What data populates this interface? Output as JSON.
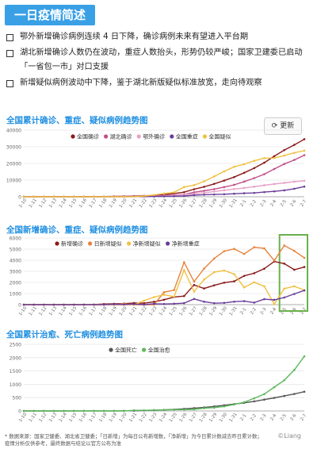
{
  "header": {
    "title": "一日疫情简述"
  },
  "bullets": [
    "鄂外新增确诊病例连续 4 日下降，确诊病例未来有望进入平台期",
    "湖北新增确诊人数仍在波动，重症人数抬头，形势仍较严峻；国家卫建委已启动「一省包一市」对口支援",
    "新增疑似病例波动中下降，鉴于湖北新版疑似标准放宽，走向待观察"
  ],
  "refresh_label": "更新",
  "footnote": "* 数据来源：国家卫健委、湖北省卫健委；「日新增」为每日公布新增数，「净新增」为今日累计数减去昨日累计数；\n疫情分析仅供参考，最终数据与结论以官方公布为准",
  "watermark": "©Liang",
  "colors": {
    "confirmed": "#8b1a1a",
    "hubei": "#c0508a",
    "outside": "#e8a0c8",
    "severe": "#6a3d9a",
    "suspected": "#f0c040",
    "new_suspected": "#e8823a",
    "death": "#555555",
    "cured": "#5cb85c",
    "highlight_box": "#6ab04c"
  },
  "chart_data": [
    {
      "type": "line",
      "title": "全国累计确诊、重症、疑似病例趋势图",
      "categories": [
        "1-10",
        "1-11",
        "1-12",
        "1-13",
        "1-14",
        "1-15",
        "1-16",
        "1-17",
        "1-18",
        "1-19",
        "1-20",
        "1-21",
        "1-22",
        "1-23",
        "1-24",
        "1-25",
        "1-26",
        "1-27",
        "1-28",
        "1-29",
        "1-30",
        "1-31",
        "2-1",
        "2-2",
        "2-3",
        "2-4",
        "2-5",
        "2-6",
        "2-7"
      ],
      "ylim": [
        0,
        40000
      ],
      "yticks": [
        "0",
        "10000",
        "20000",
        "30000",
        "40000"
      ],
      "series": [
        {
          "name": "全国确诊",
          "color_key": "confirmed",
          "values": [
            41,
            41,
            41,
            41,
            41,
            41,
            45,
            62,
            121,
            198,
            291,
            440,
            571,
            830,
            1287,
            1975,
            2744,
            4515,
            5974,
            7711,
            9692,
            11791,
            14380,
            17205,
            20438,
            24324,
            28018,
            31161,
            34546
          ]
        },
        {
          "name": "湖北确诊",
          "color_key": "hubei",
          "values": [
            41,
            41,
            41,
            41,
            41,
            41,
            45,
            62,
            121,
            198,
            270,
            375,
            444,
            549,
            729,
            1052,
            1423,
            2714,
            3554,
            4586,
            5806,
            7153,
            9074,
            11177,
            13522,
            16678,
            19665,
            22112,
            24953
          ]
        },
        {
          "name": "鄂外确诊",
          "color_key": "outside",
          "values": [
            0,
            0,
            0,
            0,
            0,
            0,
            0,
            0,
            0,
            0,
            21,
            65,
            127,
            281,
            558,
            923,
            1321,
            1801,
            2420,
            3125,
            3886,
            4638,
            5306,
            6028,
            6916,
            7646,
            8353,
            9049,
            9593
          ]
        },
        {
          "name": "全国重症",
          "color_key": "severe",
          "values": [
            0,
            0,
            0,
            0,
            0,
            0,
            0,
            0,
            0,
            35,
            51,
            102,
            95,
            177,
            237,
            324,
            461,
            976,
            1239,
            1370,
            1527,
            1795,
            2110,
            2296,
            2788,
            3219,
            3859,
            4821,
            6101
          ]
        },
        {
          "name": "全国疑似",
          "color_key": "suspected",
          "values": [
            0,
            0,
            0,
            0,
            0,
            0,
            0,
            0,
            0,
            0,
            54,
            37,
            393,
            1072,
            1965,
            2684,
            5794,
            6973,
            9239,
            12167,
            15238,
            17988,
            19544,
            21558,
            23214,
            23260,
            24702,
            26359,
            27657
          ]
        }
      ]
    },
    {
      "type": "line",
      "title": "全国新增确诊、重症、疑似病例趋势图",
      "categories": [
        "1-10",
        "1-11",
        "1-12",
        "1-13",
        "1-14",
        "1-15",
        "1-16",
        "1-17",
        "1-18",
        "1-19",
        "1-20",
        "1-21",
        "1-22",
        "1-23",
        "1-24",
        "1-25",
        "1-26",
        "1-27",
        "1-28",
        "1-29",
        "1-30",
        "1-31",
        "2-1",
        "2-2",
        "2-3",
        "2-4",
        "2-5",
        "2-6",
        "2-7"
      ],
      "ylim": [
        0,
        6000
      ],
      "yticks": [
        "0",
        "1000",
        "2000",
        "3000",
        "4000",
        "5000",
        "6000"
      ],
      "series": [
        {
          "name": "新增确诊",
          "color_key": "confirmed",
          "values": [
            0,
            0,
            0,
            0,
            0,
            0,
            4,
            17,
            59,
            77,
            93,
            149,
            131,
            259,
            444,
            688,
            769,
            1771,
            1459,
            1737,
            1982,
            2102,
            2590,
            2829,
            3235,
            3887,
            3694,
            3143,
            3385
          ]
        },
        {
          "name": "日新增疑似",
          "color_key": "new_suspected",
          "values": [
            0,
            0,
            0,
            0,
            0,
            0,
            0,
            0,
            0,
            0,
            0,
            0,
            0,
            0,
            1118,
            1309,
            3806,
            2077,
            3248,
            4148,
            4812,
            5019,
            4562,
            5173,
            5072,
            3971,
            5328,
            4833,
            4214
          ]
        },
        {
          "name": "净新增疑似",
          "color_key": "suspected",
          "values": [
            0,
            0,
            0,
            0,
            0,
            0,
            0,
            0,
            0,
            0,
            54,
            -17,
            356,
            679,
            893,
            719,
            3110,
            1179,
            2266,
            2928,
            3071,
            2750,
            1556,
            2014,
            1656,
            46,
            1442,
            1657,
            1298
          ]
        },
        {
          "name": "净新增重症",
          "color_key": "severe",
          "values": [
            0,
            0,
            0,
            0,
            0,
            0,
            0,
            0,
            0,
            35,
            16,
            51,
            -7,
            82,
            60,
            87,
            137,
            515,
            263,
            131,
            157,
            268,
            315,
            186,
            492,
            431,
            640,
            962,
            1280
          ]
        }
      ]
    },
    {
      "type": "line",
      "title": "全国累计治愈、死亡病例趋势图",
      "categories": [
        "1-10",
        "1-11",
        "1-12",
        "1-13",
        "1-14",
        "1-15",
        "1-16",
        "1-17",
        "1-18",
        "1-19",
        "1-20",
        "1-21",
        "1-22",
        "1-23",
        "1-24",
        "1-25",
        "1-26",
        "1-27",
        "1-28",
        "1-29",
        "1-30",
        "1-31",
        "2-1",
        "2-2",
        "2-3",
        "2-4",
        "2-5",
        "2-6",
        "2-7"
      ],
      "ylim": [
        0,
        2500
      ],
      "yticks": [
        "0",
        "500",
        "1000",
        "1500",
        "2000",
        "2500"
      ],
      "series": [
        {
          "name": "全国死亡",
          "color_key": "death",
          "values": [
            1,
            1,
            1,
            1,
            1,
            2,
            2,
            2,
            3,
            4,
            6,
            9,
            17,
            25,
            41,
            56,
            80,
            106,
            132,
            170,
            213,
            259,
            304,
            361,
            425,
            490,
            563,
            636,
            722
          ]
        },
        {
          "name": "全国治愈",
          "color_key": "cured",
          "values": [
            0,
            0,
            0,
            0,
            0,
            0,
            0,
            0,
            0,
            0,
            0,
            25,
            25,
            34,
            38,
            49,
            51,
            60,
            103,
            124,
            171,
            243,
            328,
            475,
            632,
            892,
            1153,
            1540,
            2050
          ]
        }
      ]
    }
  ]
}
